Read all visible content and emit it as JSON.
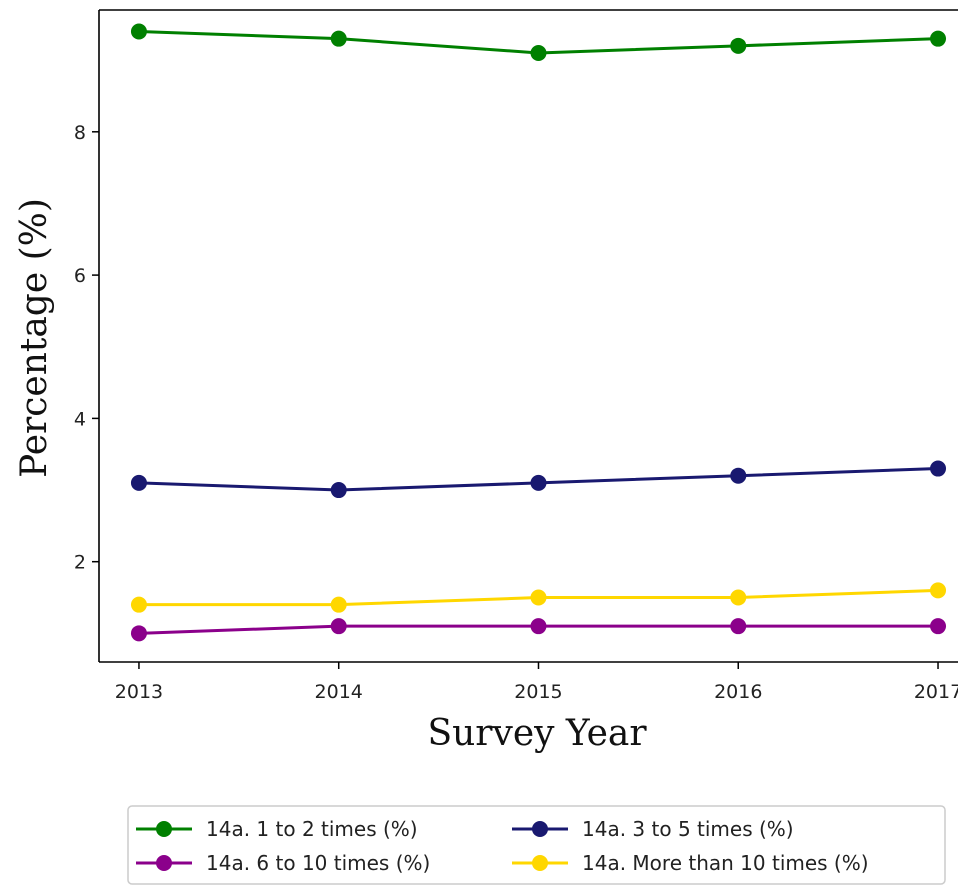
{
  "chart_data": {
    "type": "line",
    "title": "",
    "xlabel": "Survey Year",
    "ylabel": "Percentage (%)",
    "x": [
      2013,
      2014,
      2015,
      2016,
      2017
    ],
    "x_tick_labels": [
      "2013",
      "2014",
      "2015",
      "2016",
      "2017"
    ],
    "yticks": [
      2,
      4,
      6,
      8
    ],
    "y_tick_labels": [
      "2",
      "4",
      "6",
      "8"
    ],
    "xlim": [
      2012.8,
      2017.1
    ],
    "ylim": [
      0.6,
      9.7
    ],
    "grid": false,
    "legend_placement": "bottom-center",
    "series": [
      {
        "name": "14a. 1 to 2 times (%)",
        "color": "#008000",
        "values": [
          9.4,
          9.3,
          9.1,
          9.2,
          9.3
        ]
      },
      {
        "name": "14a. 3 to 5 times (%)",
        "color": "#191970",
        "values": [
          3.1,
          3.0,
          3.1,
          3.2,
          3.3
        ]
      },
      {
        "name": "14a. 6 to 10 times (%)",
        "color": "#8B008B",
        "values": [
          1.0,
          1.1,
          1.1,
          1.1,
          1.1
        ]
      },
      {
        "name": "14a. More than 10 times (%)",
        "color": "#FFD700",
        "values": [
          1.4,
          1.4,
          1.5,
          1.5,
          1.6
        ]
      }
    ]
  }
}
